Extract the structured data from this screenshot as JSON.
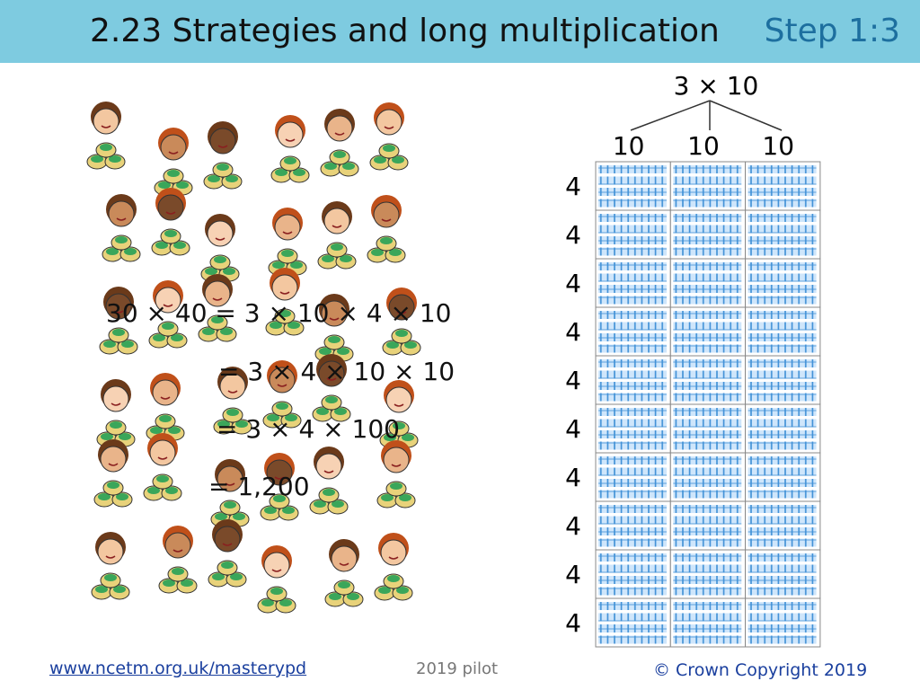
{
  "header": {
    "title": "2.23 Strategies and long multiplication",
    "step": "Step 1:3"
  },
  "equations": [
    "30 × 40 = 3 × 10 × 4 × 10",
    "= 3 × 4 × 10 × 10",
    "= 3 × 4 × 100",
    "= 1,200"
  ],
  "diagram": {
    "top_label": "3 × 10",
    "column_labels": [
      "10",
      "10",
      "10"
    ],
    "row_labels": [
      "4",
      "4",
      "4",
      "4",
      "4",
      "4",
      "4",
      "4",
      "4",
      "4"
    ]
  },
  "footer": {
    "link": "www.ncetm.org.uk/masterypd",
    "note": "2019 pilot",
    "copyright": "© Crown Copyright 2019"
  }
}
